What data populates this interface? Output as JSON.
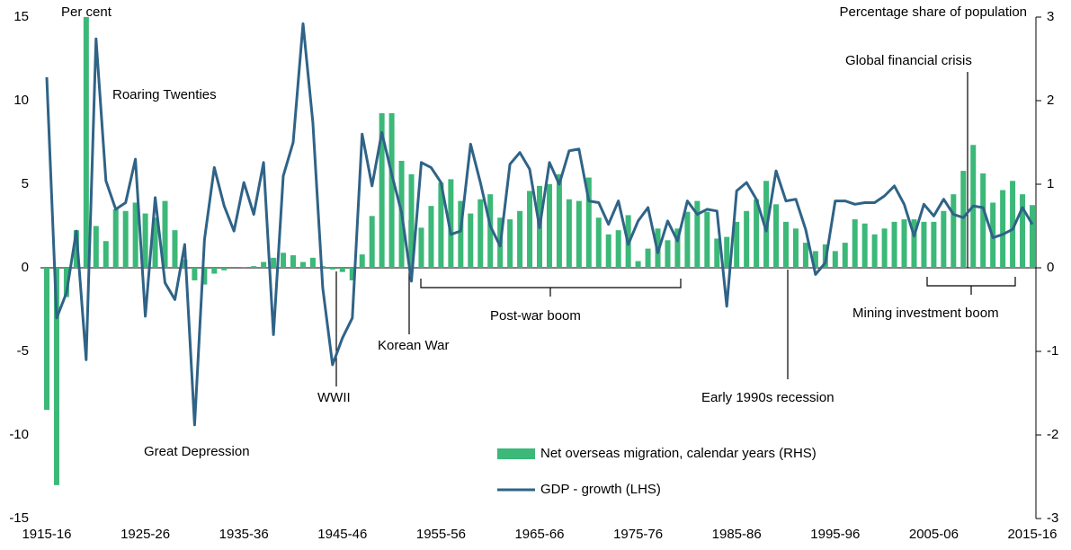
{
  "chart_data": {
    "type": "bar-line",
    "ylabel": "Per cent",
    "y2label": "Percentage share of population",
    "categories": [
      "1915-16",
      null,
      null,
      null,
      null,
      null,
      null,
      null,
      null,
      null,
      "1925-26",
      null,
      null,
      null,
      null,
      null,
      null,
      null,
      null,
      null,
      "1935-36",
      null,
      null,
      null,
      null,
      null,
      null,
      null,
      null,
      null,
      "1945-46",
      null,
      null,
      null,
      null,
      null,
      null,
      null,
      null,
      null,
      "1955-56",
      null,
      null,
      null,
      null,
      null,
      null,
      null,
      null,
      null,
      "1965-66",
      null,
      null,
      null,
      null,
      null,
      null,
      null,
      null,
      null,
      "1975-76",
      null,
      null,
      null,
      null,
      null,
      null,
      null,
      null,
      null,
      "1985-86",
      null,
      null,
      null,
      null,
      null,
      null,
      null,
      null,
      null,
      "1995-96",
      null,
      null,
      null,
      null,
      null,
      null,
      null,
      null,
      null,
      "2005-06",
      null,
      null,
      null,
      null,
      null,
      null,
      null,
      null,
      null,
      "2015-16"
    ],
    "series": [
      {
        "name": "Net overseas migration, calendar years (RHS)",
        "type": "bar",
        "axis": "y2",
        "color": "#3cb878",
        "values": [
          -1.7,
          -2.6,
          -0.35,
          0.45,
          3.0,
          0.5,
          0.32,
          0.7,
          0.68,
          0.78,
          0.65,
          0.6,
          0.8,
          0.45,
          0.1,
          -0.15,
          -0.2,
          -0.07,
          -0.03,
          0,
          0.01,
          0.02,
          0.07,
          0.12,
          0.18,
          0.15,
          0.07,
          0.12,
          0.02,
          -0.02,
          -0.05,
          -0.15,
          0.16,
          0.62,
          1.85,
          1.85,
          1.28,
          1.12,
          0.48,
          0.74,
          1.02,
          1.06,
          0.8,
          0.65,
          0.82,
          0.88,
          0.6,
          0.58,
          0.68,
          0.92,
          0.98,
          1.0,
          1.12,
          0.82,
          0.8,
          1.08,
          0.6,
          0.4,
          0.45,
          0.63,
          0.08,
          0.23,
          0.47,
          0.33,
          0.47,
          0.67,
          0.8,
          0.67,
          0.35,
          0.37,
          0.55,
          0.68,
          0.82,
          1.04,
          0.76,
          0.55,
          0.47,
          0.3,
          0.2,
          0.28,
          0.2,
          0.3,
          0.58,
          0.53,
          0.4,
          0.47,
          0.55,
          0.58,
          0.58,
          0.55,
          0.55,
          0.68,
          0.88,
          1.16,
          1.47,
          1.13,
          0.78,
          0.93,
          1.04,
          0.88,
          0.75
        ]
      },
      {
        "name": "GDP - growth (LHS)",
        "type": "line",
        "axis": "y",
        "color": "#2f6387",
        "values": [
          11.4,
          -3.0,
          -1.5,
          2.2,
          -5.5,
          13.7,
          5.2,
          3.5,
          3.9,
          6.5,
          -2.9,
          4.2,
          -0.9,
          -1.9,
          1.4,
          -9.4,
          1.7,
          6.0,
          3.7,
          2.2,
          5.1,
          3.2,
          6.3,
          -4.0,
          5.5,
          7.5,
          14.6,
          8.7,
          -1.2,
          -5.8,
          -4.2,
          -3.0,
          8.0,
          4.9,
          8.1,
          5.6,
          3.3,
          -0.8,
          6.3,
          6.0,
          5.1,
          2.0,
          2.2,
          7.4,
          5.1,
          2.5,
          1.3,
          6.2,
          6.9,
          5.9,
          2.4,
          6.3,
          5.0,
          7.0,
          7.1,
          4.0,
          3.9,
          2.6,
          4.0,
          1.4,
          2.8,
          3.6,
          0.9,
          2.8,
          1.6,
          4.0,
          3.2,
          3.5,
          3.4,
          -2.3,
          4.6,
          5.1,
          4.1,
          2.2,
          5.8,
          4.0,
          4.1,
          2.3,
          -0.4,
          0.3,
          4.0,
          4.0,
          3.8,
          3.9,
          3.9,
          4.3,
          4.9,
          3.8,
          1.9,
          3.8,
          3.1,
          4.1,
          3.2,
          3.0,
          3.7,
          3.6,
          1.8,
          2.0,
          2.3,
          3.6,
          2.6
        ]
      }
    ],
    "ylim": [
      -15,
      15
    ],
    "yticks": [
      -15,
      -10,
      -5,
      0,
      5,
      10,
      15
    ],
    "y2lim": [
      -3,
      3
    ],
    "y2ticks": [
      -3,
      -2,
      -1,
      0,
      1,
      2,
      3
    ],
    "legend": "lower center",
    "annotations": [
      "Roaring Twenties",
      "Great Depression",
      "WWII",
      "Korean War",
      "Post-war boom",
      "Early 1990s recession",
      "Global financial crisis",
      "Mining investment boom"
    ]
  }
}
